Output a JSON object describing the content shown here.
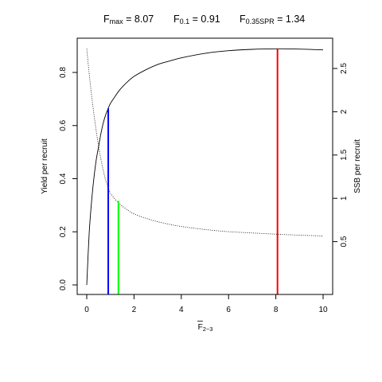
{
  "chart_data": {
    "type": "line",
    "title": {
      "fmax": {
        "label": "F",
        "sub": "max",
        "value": "8.07"
      },
      "f01": {
        "label": "F",
        "sub": "0.1",
        "value": "0.91"
      },
      "f35": {
        "label": "F",
        "sub": "0.35SPR",
        "value": "1.34"
      }
    },
    "xlabel": {
      "main": "F",
      "sub": "2−3"
    },
    "ylabel_left": "Yield per recruit",
    "ylabel_right": "SSB per recruit",
    "xlim": [
      0,
      10
    ],
    "ylim_left": [
      0,
      0.89
    ],
    "ylim_right": [
      0,
      2.73
    ],
    "x_ticks": [
      "0",
      "2",
      "4",
      "6",
      "8",
      "10"
    ],
    "y_ticks_left": [
      "0.0",
      "0.2",
      "0.4",
      "0.6",
      "0.8"
    ],
    "y_ticks_right": [
      "0.5",
      "1",
      "1.5",
      "2",
      "2.5"
    ],
    "series": [
      {
        "axis": "left",
        "style": "solid",
        "x": [
          0,
          0.1,
          0.2,
          0.3,
          0.4,
          0.5,
          0.6,
          0.7,
          0.8,
          0.91,
          1.0,
          1.2,
          1.34,
          1.5,
          1.75,
          2,
          2.5,
          3,
          3.5,
          4,
          5,
          6,
          7,
          8.07,
          9,
          10
        ],
        "y": [
          0,
          0.19,
          0.31,
          0.4,
          0.47,
          0.52,
          0.57,
          0.61,
          0.64,
          0.665,
          0.683,
          0.71,
          0.728,
          0.745,
          0.767,
          0.785,
          0.81,
          0.83,
          0.843,
          0.855,
          0.872,
          0.882,
          0.887,
          0.889,
          0.888,
          0.885
        ]
      },
      {
        "axis": "right",
        "style": "dotted",
        "x": [
          0,
          0.1,
          0.2,
          0.3,
          0.4,
          0.5,
          0.6,
          0.7,
          0.8,
          0.91,
          1.0,
          1.2,
          1.34,
          1.5,
          1.75,
          2,
          2.5,
          3,
          3.5,
          4,
          5,
          6,
          7,
          8.07,
          9,
          10
        ],
        "y": [
          2.73,
          2.45,
          2.2,
          1.98,
          1.78,
          1.6,
          1.45,
          1.32,
          1.21,
          1.12,
          1.06,
          0.99,
          0.95,
          0.91,
          0.86,
          0.82,
          0.77,
          0.73,
          0.7,
          0.675,
          0.64,
          0.615,
          0.6,
          0.585,
          0.575,
          0.565
        ]
      }
    ],
    "reference_lines": [
      {
        "x": 0.91,
        "y": 0.665,
        "color": "#0000ff"
      },
      {
        "x": 1.34,
        "y": 0.316,
        "color": "#00ff00"
      },
      {
        "x": 8.07,
        "y": 0.889,
        "color": "#ff0000"
      }
    ],
    "grid": false,
    "legend": "none"
  }
}
